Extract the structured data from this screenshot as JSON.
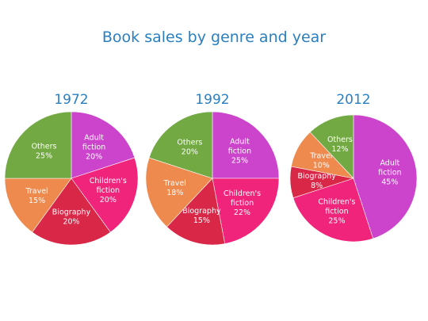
{
  "colors": {
    "title": "#2a7fc1",
    "Adult fiction": "#cc44cc",
    "Children's fiction": "#f0247a",
    "Biography": "#d92747",
    "Travel": "#ef8a4e",
    "Others": "#72a942"
  },
  "chart_data": {
    "title": "Book sales by genre and year",
    "legend": "none",
    "charts": [
      {
        "type": "pie",
        "title": "1972",
        "slices": [
          {
            "name": "Adult fiction",
            "label_lines": [
              "Adult",
              "fiction"
            ],
            "value": 20,
            "value_label": "20%"
          },
          {
            "name": "Children's fiction",
            "label_lines": [
              "Children's",
              "fiction"
            ],
            "value": 20,
            "value_label": "20%"
          },
          {
            "name": "Biography",
            "label_lines": [
              "Biography"
            ],
            "value": 20,
            "value_label": "20%"
          },
          {
            "name": "Travel",
            "label_lines": [
              "Travel"
            ],
            "value": 15,
            "value_label": "15%"
          },
          {
            "name": "Others",
            "label_lines": [
              "Others"
            ],
            "value": 25,
            "value_label": "25%"
          }
        ]
      },
      {
        "type": "pie",
        "title": "1992",
        "slices": [
          {
            "name": "Adult fiction",
            "label_lines": [
              "Adult",
              "fiction"
            ],
            "value": 25,
            "value_label": "25%"
          },
          {
            "name": "Children's fiction",
            "label_lines": [
              "Children's",
              "fiction"
            ],
            "value": 22,
            "value_label": "22%"
          },
          {
            "name": "Biography",
            "label_lines": [
              "Biography"
            ],
            "value": 15,
            "value_label": "15%"
          },
          {
            "name": "Travel",
            "label_lines": [
              "Travel"
            ],
            "value": 18,
            "value_label": "18%"
          },
          {
            "name": "Others",
            "label_lines": [
              "Others"
            ],
            "value": 20,
            "value_label": "20%"
          }
        ]
      },
      {
        "type": "pie",
        "title": "2012",
        "slices": [
          {
            "name": "Adult fiction",
            "label_lines": [
              "Adult",
              "fiction"
            ],
            "value": 45,
            "value_label": "45%"
          },
          {
            "name": "Children's fiction",
            "label_lines": [
              "Children's",
              "fiction"
            ],
            "value": 25,
            "value_label": "25%"
          },
          {
            "name": "Biography",
            "label_lines": [
              "Biography"
            ],
            "value": 8,
            "value_label": "8%"
          },
          {
            "name": "Travel",
            "label_lines": [
              "Travel"
            ],
            "value": 10,
            "value_label": "10%"
          },
          {
            "name": "Others",
            "label_lines": [
              "Others"
            ],
            "value": 12,
            "value_label": "12%"
          }
        ]
      }
    ]
  }
}
